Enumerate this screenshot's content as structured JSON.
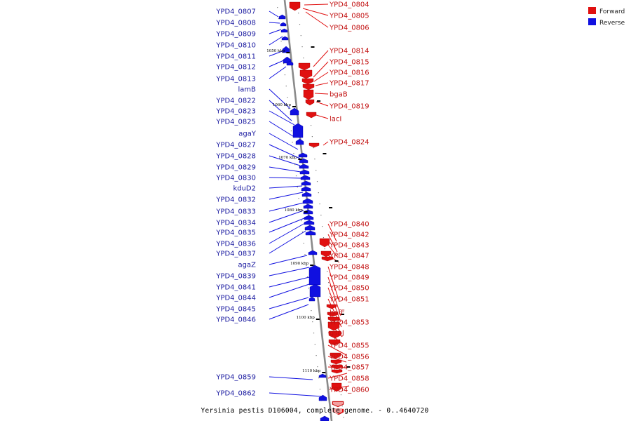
{
  "caption": "Yersinia pestis D106004, complete genome. - 0..4640720",
  "colors": {
    "forward": "#e01010",
    "reverse": "#1010e0",
    "axis": "#888888"
  },
  "legend": [
    {
      "label": "Forward",
      "color": "#e01010"
    },
    {
      "label": "Reverse",
      "color": "#1010e0"
    }
  ],
  "ticks": [
    "1050 kbp",
    "1060 kbp",
    "1070 kbp",
    "1080 kbp",
    "1090 kbp",
    "1100 kbp",
    "1110 kbp"
  ],
  "reverse_genes": [
    "YPD4_0807",
    "YPD4_0808",
    "YPD4_0809",
    "YPD4_0810",
    "YPD4_0811",
    "YPD4_0812",
    "YPD4_0813",
    "lamB",
    "YPD4_0822",
    "YPD4_0823",
    "YPD4_0825",
    "agaY",
    "YPD4_0827",
    "YPD4_0828",
    "YPD4_0829",
    "YPD4_0830",
    "kduD2",
    "YPD4_0832",
    "YPD4_0833",
    "YPD4_0834",
    "YPD4_0835",
    "YPD4_0836",
    "YPD4_0837",
    "agaZ",
    "YPD4_0839",
    "YPD4_0841",
    "YPD4_0844",
    "YPD4_0845",
    "YPD4_0846",
    "YPD4_0859",
    "YPD4_0862"
  ],
  "forward_genes": [
    "YPD4_0804",
    "YPD4_0805",
    "YPD4_0806",
    "YPD4_0814",
    "YPD4_0815",
    "YPD4_0816",
    "YPD4_0817",
    "bgaB",
    "YPD4_0819",
    "lacI",
    "YPD4_0824",
    "YPD4_0840",
    "YPD4_0842",
    "YPD4_0843",
    "YPD4_0847",
    "YPD4_0848",
    "YPD4_0849",
    "YPD4_0850",
    "YPD4_0851",
    "hofF",
    "YPD4_0853",
    "gspJ",
    "YPD4_0855",
    "YPD4_0856",
    "YPD4_0857",
    "YPD4_0858",
    "YPD4_0860"
  ]
}
